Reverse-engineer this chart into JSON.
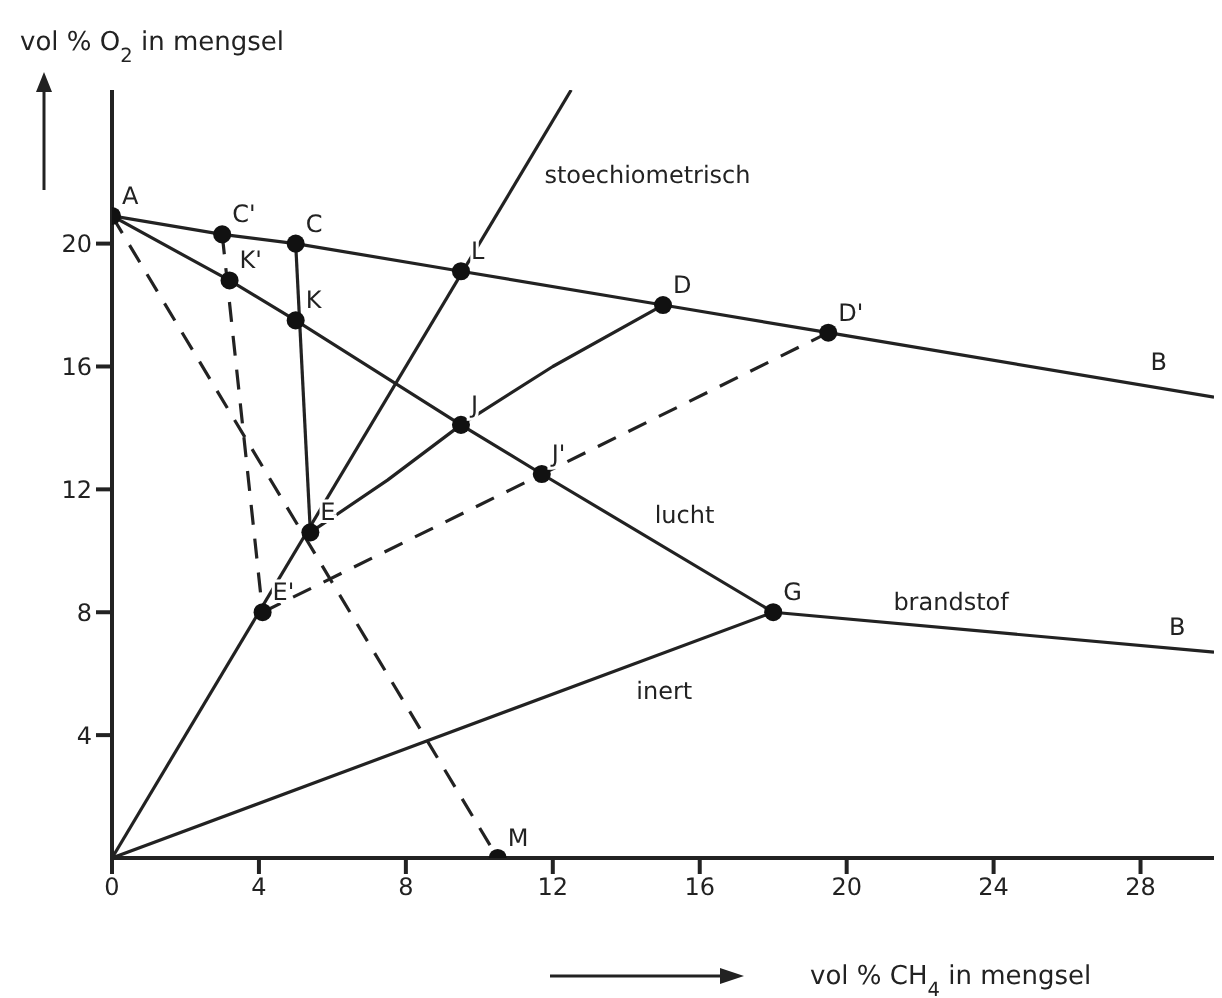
{
  "chart_data": {
    "type": "line",
    "xlabel": "vol % CH$_{4}$ in mengsel",
    "ylabel": "vol % O$_{2}$ in mengsel",
    "xlim": [
      0,
      30
    ],
    "ylim": [
      0,
      25
    ],
    "xticks": [
      0,
      4,
      8,
      12,
      16,
      20,
      24,
      28
    ],
    "yticks": [
      4,
      8,
      12,
      16,
      20
    ],
    "grid": false,
    "series": [
      {
        "color": "#222222",
        "line_style": "solid",
        "marker": "none",
        "x": [
          0,
          3,
          5,
          9.5,
          15,
          19.5,
          30
        ],
        "values": [
          20.9,
          20.3,
          20,
          19.1,
          18,
          17.1,
          15.0
        ]
      },
      {
        "color": "#222222",
        "line_style": "solid",
        "marker": "none",
        "x": [
          0,
          3.2,
          5,
          9.5,
          11.7,
          18
        ],
        "values": [
          20.9,
          18.8,
          17.5,
          14.1,
          12.5,
          8
        ]
      },
      {
        "color": "#222222",
        "line_style": "solid",
        "marker": "none",
        "x": [
          18,
          30
        ],
        "values": [
          8,
          6.7
        ]
      },
      {
        "color": "#222222",
        "line_style": "solid",
        "marker": "none",
        "x": [
          0,
          18
        ],
        "values": [
          0,
          8
        ]
      },
      {
        "color": "#222222",
        "line_style": "solid",
        "marker": "none",
        "x": [
          0,
          12.5
        ],
        "values": [
          0,
          25
        ]
      },
      {
        "color": "#222222",
        "line_style": "solid",
        "marker": "none",
        "x": [
          5,
          5.4
        ],
        "values": [
          20,
          10.6
        ]
      },
      {
        "color": "#222222",
        "line_style": "solid",
        "marker": "none",
        "x": [
          5.4,
          7.5,
          9.5,
          12,
          15
        ],
        "values": [
          10.6,
          12.3,
          14.1,
          16.0,
          18
        ]
      },
      {
        "color": "#222222",
        "line_style": "dashed",
        "marker": "none",
        "x": [
          0,
          10.5
        ],
        "values": [
          20.9,
          0
        ]
      },
      {
        "color": "#222222",
        "line_style": "dashed",
        "marker": "none",
        "x": [
          3,
          4.1
        ],
        "values": [
          20.3,
          8
        ]
      },
      {
        "color": "#222222",
        "line_style": "dashed",
        "marker": "none",
        "x": [
          4.1,
          19.5
        ],
        "values": [
          8,
          17.1
        ]
      },
      {
        "type": "scatter",
        "color": "#111111",
        "marker": "circle",
        "x": [
          0,
          3,
          5,
          9.5,
          15,
          19.5,
          3.2,
          5,
          9.5,
          11.7,
          18,
          5.4,
          4.1,
          10.5
        ],
        "values": [
          20.9,
          20.3,
          20,
          19.1,
          18,
          17.1,
          18.8,
          17.5,
          14.1,
          12.5,
          8,
          10.6,
          8,
          0
        ]
      }
    ],
    "annotations": [
      {
        "text": "A",
        "x": 0,
        "y": 20.9
      },
      {
        "text": "C'",
        "x": 3,
        "y": 20.3
      },
      {
        "text": "C",
        "x": 5,
        "y": 20
      },
      {
        "text": "L",
        "x": 9.5,
        "y": 19.1
      },
      {
        "text": "D",
        "x": 15,
        "y": 18
      },
      {
        "text": "D'",
        "x": 19.5,
        "y": 17.1
      },
      {
        "text": "K'",
        "x": 3.2,
        "y": 18.8
      },
      {
        "text": "K",
        "x": 5,
        "y": 17.5
      },
      {
        "text": "J",
        "x": 9.5,
        "y": 14.1
      },
      {
        "text": "J'",
        "x": 11.7,
        "y": 12.5
      },
      {
        "text": "G",
        "x": 18,
        "y": 8
      },
      {
        "text": "E",
        "x": 5.4,
        "y": 10.6
      },
      {
        "text": "E'",
        "x": 4.1,
        "y": 8
      },
      {
        "text": "M",
        "x": 10.5,
        "y": 0
      },
      {
        "text": "stoechiometrisch",
        "x": 11.5,
        "y": 23
      },
      {
        "text": "lucht",
        "x": 14.5,
        "y": 10.5
      },
      {
        "text": "brandstof",
        "x": 21,
        "y": 7.67
      },
      {
        "text": "inert",
        "x": 14,
        "y": 6.22
      },
      {
        "text": "B",
        "x": 28,
        "y": 15.5
      },
      {
        "text": "B",
        "x": 28.5,
        "y": 6.87
      }
    ]
  }
}
